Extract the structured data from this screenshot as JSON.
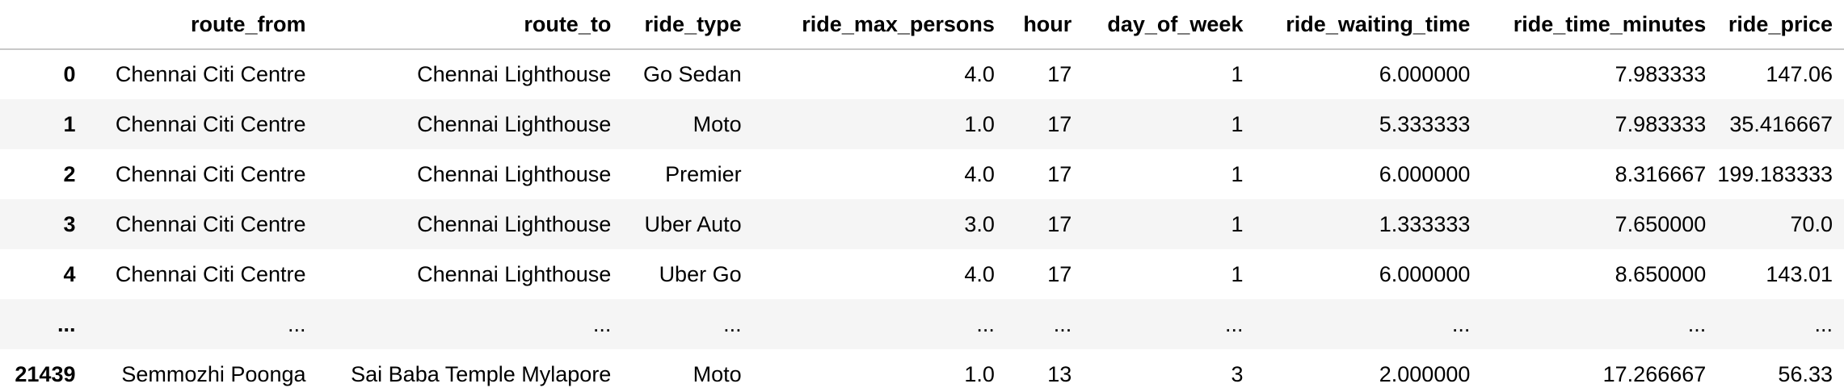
{
  "table": {
    "index_header": "",
    "columns": [
      "route_from",
      "route_to",
      "ride_type",
      "ride_max_persons",
      "hour",
      "day_of_week",
      "ride_waiting_time",
      "ride_time_minutes",
      "ride_price"
    ],
    "rows": [
      {
        "index": "0",
        "cells": [
          "Chennai Citi Centre",
          "Chennai Lighthouse",
          "Go Sedan",
          "4.0",
          "17",
          "1",
          "6.000000",
          "7.983333",
          "147.06"
        ]
      },
      {
        "index": "1",
        "cells": [
          "Chennai Citi Centre",
          "Chennai Lighthouse",
          "Moto",
          "1.0",
          "17",
          "1",
          "5.333333",
          "7.983333",
          "35.416667"
        ]
      },
      {
        "index": "2",
        "cells": [
          "Chennai Citi Centre",
          "Chennai Lighthouse",
          "Premier",
          "4.0",
          "17",
          "1",
          "6.000000",
          "8.316667",
          "199.183333"
        ]
      },
      {
        "index": "3",
        "cells": [
          "Chennai Citi Centre",
          "Chennai Lighthouse",
          "Uber Auto",
          "3.0",
          "17",
          "1",
          "1.333333",
          "7.650000",
          "70.0"
        ]
      },
      {
        "index": "4",
        "cells": [
          "Chennai Citi Centre",
          "Chennai Lighthouse",
          "Uber Go",
          "4.0",
          "17",
          "1",
          "6.000000",
          "8.650000",
          "143.01"
        ]
      },
      {
        "index": "...",
        "cells": [
          "...",
          "...",
          "...",
          "...",
          "...",
          "...",
          "...",
          "...",
          "..."
        ]
      },
      {
        "index": "21439",
        "cells": [
          "Semmozhi Poonga",
          "Sai Baba Temple Mylapore",
          "Moto",
          "1.0",
          "13",
          "3",
          "2.000000",
          "17.266667",
          "56.33"
        ]
      }
    ]
  },
  "colors": {
    "striped_row": "#f5f5f5",
    "header_border": "#c8c8c8",
    "text": "#000000"
  }
}
